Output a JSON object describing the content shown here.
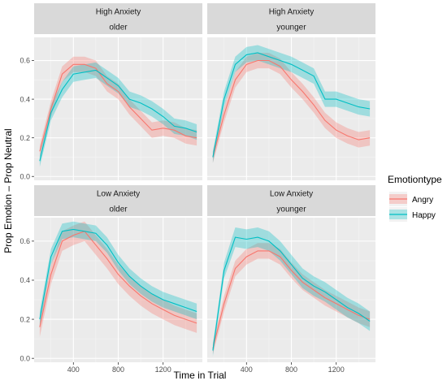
{
  "chart_data": {
    "type": "line",
    "xlabel": "Time in Trial",
    "ylabel": "Prop Emotion – Prop Neutral",
    "xlim": [
      50,
      1550
    ],
    "ylim": [
      -0.02,
      0.72
    ],
    "x_ticks": [
      400,
      800,
      1200
    ],
    "y_ticks": [
      0.0,
      0.2,
      0.4,
      0.6
    ],
    "x_tick_labels": [
      "400",
      "800",
      "1200"
    ],
    "y_tick_labels": [
      "0.0",
      "0.2",
      "0.4",
      "0.6"
    ],
    "grid": true,
    "legend": {
      "title": "Emotiontype",
      "placement": "right",
      "entries": [
        {
          "name": "Angry",
          "color": "#F8766D"
        },
        {
          "name": "Happy",
          "color": "#00BFC4"
        }
      ]
    },
    "x": [
      100,
      200,
      300,
      400,
      500,
      600,
      700,
      800,
      900,
      1000,
      1100,
      1200,
      1300,
      1400,
      1500
    ],
    "panels": [
      {
        "strip_top": "High Anxiety",
        "strip_bottom": "older",
        "series": [
          {
            "name": "Angry",
            "color": "#F8766D",
            "values": [
              0.13,
              0.35,
              0.53,
              0.58,
              0.58,
              0.56,
              0.48,
              0.44,
              0.36,
              0.3,
              0.24,
              0.25,
              0.24,
              0.21,
              0.2
            ],
            "lower": [
              0.1,
              0.31,
              0.49,
              0.54,
              0.54,
              0.52,
              0.44,
              0.4,
              0.32,
              0.26,
              0.2,
              0.21,
              0.2,
              0.17,
              0.16
            ],
            "upper": [
              0.16,
              0.39,
              0.57,
              0.62,
              0.62,
              0.6,
              0.52,
              0.48,
              0.4,
              0.34,
              0.28,
              0.29,
              0.28,
              0.25,
              0.24
            ]
          },
          {
            "name": "Happy",
            "color": "#00BFC4",
            "values": [
              0.08,
              0.33,
              0.45,
              0.53,
              0.54,
              0.55,
              0.51,
              0.47,
              0.4,
              0.38,
              0.35,
              0.31,
              0.26,
              0.25,
              0.23
            ],
            "lower": [
              0.05,
              0.29,
              0.41,
              0.49,
              0.5,
              0.51,
              0.47,
              0.43,
              0.36,
              0.34,
              0.31,
              0.27,
              0.22,
              0.21,
              0.19
            ],
            "upper": [
              0.11,
              0.37,
              0.49,
              0.57,
              0.58,
              0.59,
              0.55,
              0.51,
              0.44,
              0.42,
              0.39,
              0.35,
              0.3,
              0.29,
              0.27
            ]
          }
        ]
      },
      {
        "strip_top": "High Anxiety",
        "strip_bottom": "younger",
        "series": [
          {
            "name": "Angry",
            "color": "#F8766D",
            "values": [
              0.1,
              0.32,
              0.5,
              0.58,
              0.6,
              0.6,
              0.57,
              0.5,
              0.44,
              0.37,
              0.29,
              0.24,
              0.21,
              0.19,
              0.2
            ],
            "lower": [
              0.07,
              0.28,
              0.46,
              0.54,
              0.56,
              0.56,
              0.53,
              0.46,
              0.4,
              0.33,
              0.25,
              0.2,
              0.17,
              0.15,
              0.16
            ],
            "upper": [
              0.13,
              0.36,
              0.54,
              0.62,
              0.64,
              0.64,
              0.61,
              0.54,
              0.48,
              0.41,
              0.33,
              0.28,
              0.25,
              0.23,
              0.24
            ]
          },
          {
            "name": "Happy",
            "color": "#00BFC4",
            "values": [
              0.1,
              0.4,
              0.58,
              0.63,
              0.64,
              0.62,
              0.6,
              0.58,
              0.55,
              0.52,
              0.4,
              0.4,
              0.38,
              0.36,
              0.35
            ],
            "lower": [
              0.07,
              0.36,
              0.54,
              0.59,
              0.6,
              0.58,
              0.56,
              0.54,
              0.51,
              0.48,
              0.36,
              0.36,
              0.34,
              0.32,
              0.31
            ],
            "upper": [
              0.13,
              0.44,
              0.62,
              0.67,
              0.68,
              0.66,
              0.64,
              0.62,
              0.59,
              0.56,
              0.44,
              0.44,
              0.42,
              0.4,
              0.39
            ]
          }
        ]
      },
      {
        "strip_top": "Low Anxiety",
        "strip_bottom": "older",
        "series": [
          {
            "name": "Angry",
            "color": "#F8766D",
            "values": [
              0.16,
              0.43,
              0.6,
              0.63,
              0.65,
              0.58,
              0.51,
              0.43,
              0.37,
              0.32,
              0.28,
              0.25,
              0.22,
              0.2,
              0.18
            ],
            "lower": [
              0.11,
              0.38,
              0.55,
              0.58,
              0.6,
              0.53,
              0.46,
              0.38,
              0.32,
              0.27,
              0.23,
              0.2,
              0.17,
              0.15,
              0.13
            ],
            "upper": [
              0.21,
              0.48,
              0.65,
              0.68,
              0.7,
              0.63,
              0.56,
              0.48,
              0.42,
              0.37,
              0.33,
              0.3,
              0.27,
              0.25,
              0.23
            ]
          },
          {
            "name": "Happy",
            "color": "#00BFC4",
            "values": [
              0.2,
              0.52,
              0.65,
              0.66,
              0.65,
              0.64,
              0.58,
              0.49,
              0.42,
              0.37,
              0.33,
              0.3,
              0.28,
              0.26,
              0.24
            ],
            "lower": [
              0.16,
              0.48,
              0.61,
              0.62,
              0.61,
              0.6,
              0.54,
              0.45,
              0.38,
              0.33,
              0.29,
              0.26,
              0.24,
              0.22,
              0.2
            ],
            "upper": [
              0.24,
              0.56,
              0.69,
              0.7,
              0.69,
              0.68,
              0.62,
              0.53,
              0.46,
              0.41,
              0.37,
              0.34,
              0.32,
              0.3,
              0.28
            ]
          }
        ]
      },
      {
        "strip_top": "Low Anxiety",
        "strip_bottom": "younger",
        "series": [
          {
            "name": "Angry",
            "color": "#F8766D",
            "values": [
              0.05,
              0.28,
              0.46,
              0.52,
              0.55,
              0.55,
              0.52,
              0.45,
              0.39,
              0.35,
              0.31,
              0.28,
              0.25,
              0.22,
              0.2
            ],
            "lower": [
              0.02,
              0.24,
              0.42,
              0.48,
              0.51,
              0.51,
              0.48,
              0.41,
              0.35,
              0.31,
              0.27,
              0.24,
              0.21,
              0.18,
              0.16
            ],
            "upper": [
              0.08,
              0.32,
              0.5,
              0.56,
              0.59,
              0.59,
              0.56,
              0.49,
              0.43,
              0.39,
              0.35,
              0.32,
              0.29,
              0.26,
              0.24
            ]
          },
          {
            "name": "Happy",
            "color": "#00BFC4",
            "values": [
              0.04,
              0.45,
              0.62,
              0.61,
              0.62,
              0.6,
              0.55,
              0.48,
              0.41,
              0.37,
              0.34,
              0.3,
              0.26,
              0.23,
              0.19
            ],
            "lower": [
              0.01,
              0.41,
              0.57,
              0.56,
              0.57,
              0.55,
              0.5,
              0.43,
              0.36,
              0.32,
              0.29,
              0.25,
              0.21,
              0.18,
              0.14
            ],
            "upper": [
              0.07,
              0.49,
              0.67,
              0.66,
              0.67,
              0.65,
              0.6,
              0.53,
              0.46,
              0.42,
              0.39,
              0.35,
              0.31,
              0.28,
              0.24
            ]
          }
        ]
      }
    ]
  }
}
